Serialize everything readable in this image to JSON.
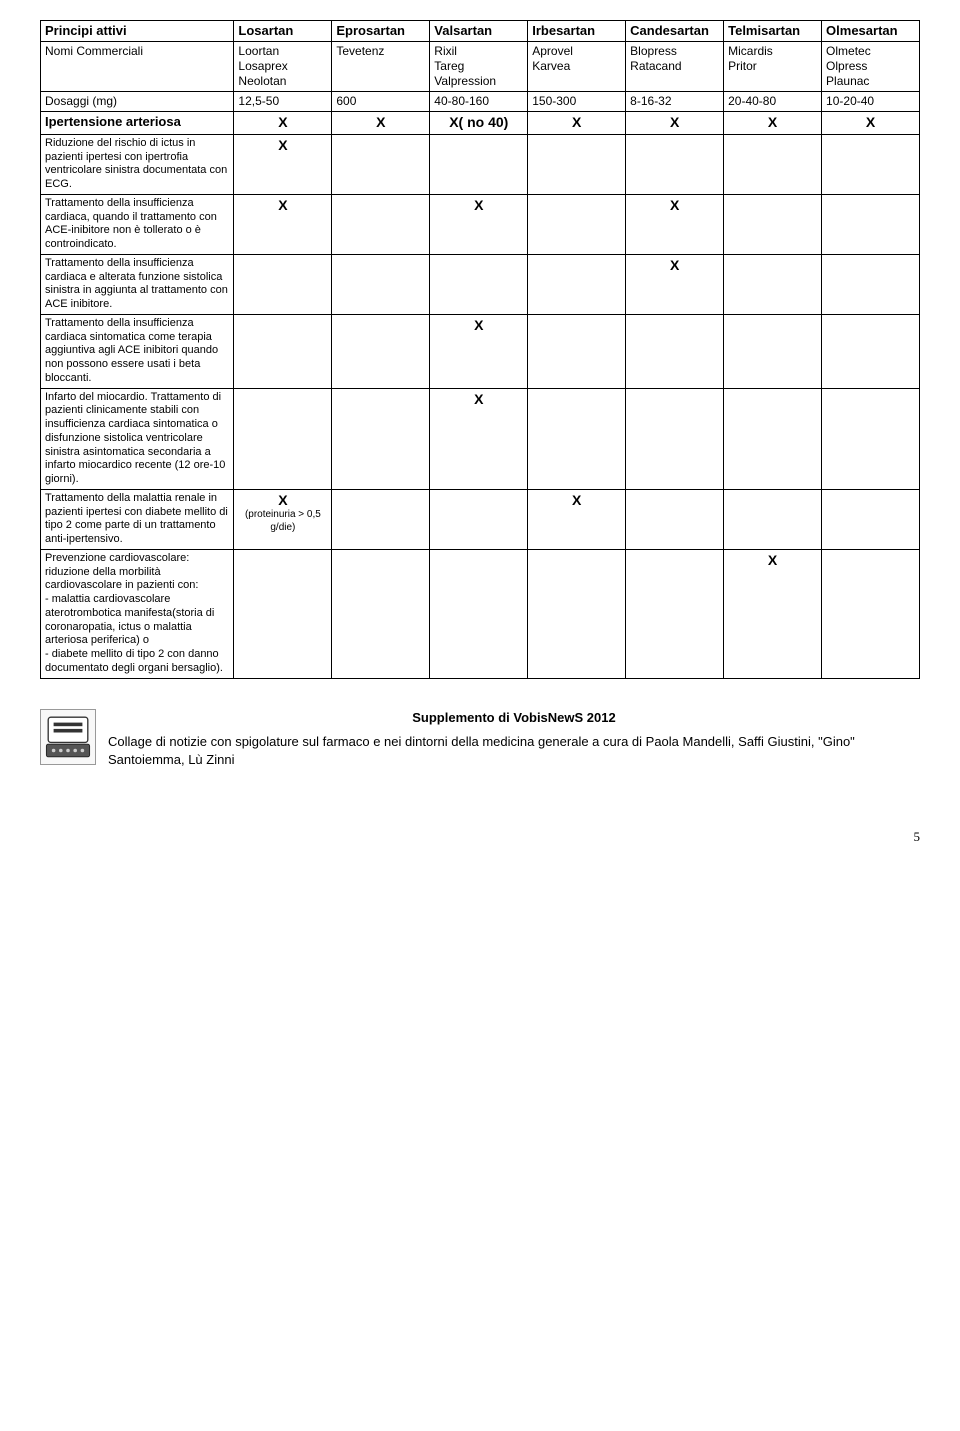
{
  "table": {
    "header_row": {
      "label": "Principi attivi",
      "cols": [
        "Losartan",
        "Eprosartan",
        "Valsartan",
        "Irbesartan",
        "Candesartan",
        "Telmisartan",
        "Olmesartan"
      ]
    },
    "brand_row": {
      "label": "Nomi Commerciali",
      "cols": [
        "Loortan\nLosaprex\nNeolotan",
        "Tevetenz",
        "Rixil\nTareg\nValpression",
        "Aprovel\nKarvea",
        "Blopress\nRatacand",
        "Micardis\nPritor",
        "Olmetec\nOlpress\nPlaunac"
      ]
    },
    "dose_row": {
      "label": "Dosaggi (mg)",
      "cols": [
        "12,5-50",
        "600",
        "40-80-160",
        "150-300",
        "8-16-32",
        "20-40-80",
        "10-20-40"
      ]
    },
    "indications": [
      {
        "label": "Ipertensione arteriosa",
        "bold": true,
        "cells": [
          "X",
          "X",
          "X( no 40)",
          "X",
          "X",
          "X",
          "X"
        ]
      },
      {
        "label": "Riduzione del rischio di ictus in pazienti ipertesi con ipertrofia ventricolare sinistra documentata con ECG.",
        "cells": [
          "X",
          "",
          "",
          "",
          "",
          "",
          ""
        ]
      },
      {
        "label": "Trattamento della insufficienza cardiaca, quando il trattamento con ACE-inibitore non è tollerato o  è controindicato.",
        "cells": [
          "X",
          "",
          "X",
          "",
          "X",
          "",
          ""
        ]
      },
      {
        "label": "Trattamento della insufficienza cardiaca e alterata funzione sistolica sinistra in aggiunta al trattamento con ACE inibitore.",
        "cells": [
          "",
          "",
          "",
          "",
          "X",
          "",
          ""
        ]
      },
      {
        "label": "Trattamento della insufficienza cardiaca sintomatica come terapia aggiuntiva agli ACE inibitori quando non possono essere usati i beta bloccanti.",
        "cells": [
          "",
          "",
          "X",
          "",
          "",
          "",
          ""
        ]
      },
      {
        "label": "Infarto del miocardio. Trattamento di pazienti clinicamente stabili con insufficienza cardiaca sintomatica o disfunzione sistolica ventricolare sinistra asintomatica secondaria a infarto miocardico recente (12 ore-10 giorni).",
        "cells": [
          "",
          "",
          "X",
          "",
          "",
          "",
          ""
        ]
      },
      {
        "label": "Trattamento della malattia renale in pazienti ipertesi con diabete mellito di tipo 2 come parte di un trattamento anti-ipertensivo.",
        "cells": [
          "X",
          "",
          "",
          "X",
          "",
          "",
          ""
        ],
        "cell_note_idx": 0,
        "cell_note": "(proteinuria > 0,5 g/die)"
      },
      {
        "label": "Prevenzione cardiovascolare: riduzione della morbilità cardiovascolare in pazienti con:\n- malattia cardiovascolare aterotrombotica manifesta(storia di coronaropatia, ictus o malattia arteriosa periferica) o\n- diabete mellito di tipo 2 con danno documentato degli organi bersaglio).",
        "cells": [
          "",
          "",
          "",
          "",
          "",
          "X",
          ""
        ]
      }
    ]
  },
  "footer": {
    "title": "Supplemento di VobisNewS 2012",
    "body": "Collage di notizie con spigolature sul farmaco e nei dintorni della medicina generale a cura di Paola Mandelli, Saffi Giustini, \"Gino\" Santoiemma, Lù Zinni"
  },
  "page_number": "5"
}
